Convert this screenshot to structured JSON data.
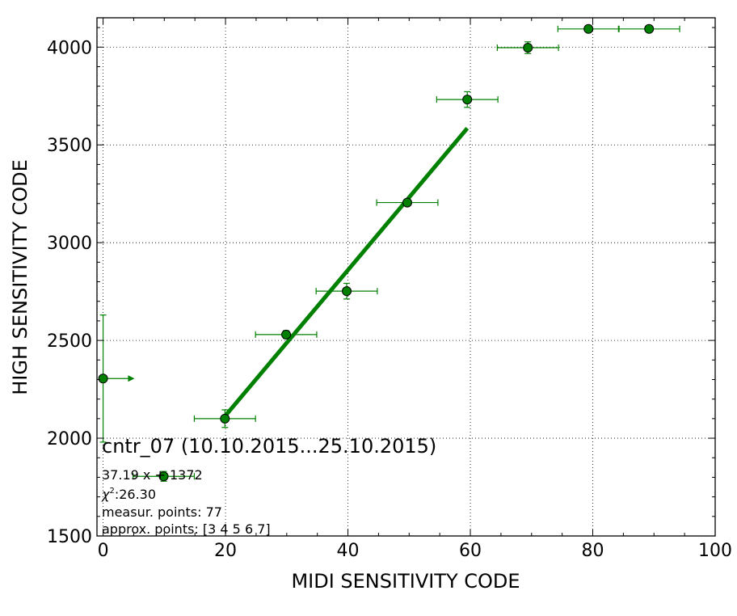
{
  "chart_data": {
    "type": "scatter",
    "title": "cntr_07 (10.10.2015...25.10.2015)",
    "xlabel": "MIDI SENSITIVITY CODE",
    "ylabel": "HIGH SENSITIVITY CODE",
    "xlim": [
      -1,
      100
    ],
    "ylim": [
      1500,
      4150
    ],
    "xticks": [
      "0",
      "20",
      "40",
      "60",
      "80",
      "100"
    ],
    "yticks": [
      "1500",
      "2000",
      "2500",
      "3000",
      "3500",
      "4000"
    ],
    "grid": true,
    "color": "#008000",
    "series": [
      {
        "type": "errorbar",
        "points": [
          {
            "x": 0,
            "y": 2305,
            "xerr_minus": 0,
            "xerr_plus": 5,
            "yerr": 325,
            "arrow": "right"
          },
          {
            "x": 9.9,
            "y": 1805,
            "xerr_minus": 5,
            "xerr_plus": 5,
            "yerr": 25
          },
          {
            "x": 19.9,
            "y": 2100,
            "xerr_minus": 5,
            "xerr_plus": 5,
            "yerr": 45
          },
          {
            "x": 29.9,
            "y": 2530,
            "xerr_minus": 5,
            "xerr_plus": 5,
            "yerr": 20
          },
          {
            "x": 39.8,
            "y": 2752,
            "xerr_minus": 5,
            "xerr_plus": 5,
            "yerr": 40
          },
          {
            "x": 49.7,
            "y": 3205,
            "xerr_minus": 5,
            "xerr_plus": 5,
            "yerr": 15
          },
          {
            "x": 59.5,
            "y": 3732,
            "xerr_minus": 5,
            "xerr_plus": 5,
            "yerr": 40
          },
          {
            "x": 69.4,
            "y": 3997,
            "xerr_minus": 5,
            "xerr_plus": 5,
            "yerr": 30
          },
          {
            "x": 79.3,
            "y": 4093,
            "xerr_minus": 5,
            "xerr_plus": 5,
            "yerr": 10
          },
          {
            "x": 89.2,
            "y": 4093,
            "xerr_minus": 5,
            "xerr_plus": 5,
            "yerr": 10
          }
        ]
      },
      {
        "type": "line",
        "x": [
          19.9,
          59.5
        ],
        "y": [
          2112,
          3585
        ]
      }
    ],
    "annotations": [
      "37.19 x + 1372",
      ":26.30",
      "measur. points: 77",
      "approx. points: [3 4 5 6 7]"
    ],
    "chi_symbol": "χ",
    "chi_sup": "2"
  }
}
